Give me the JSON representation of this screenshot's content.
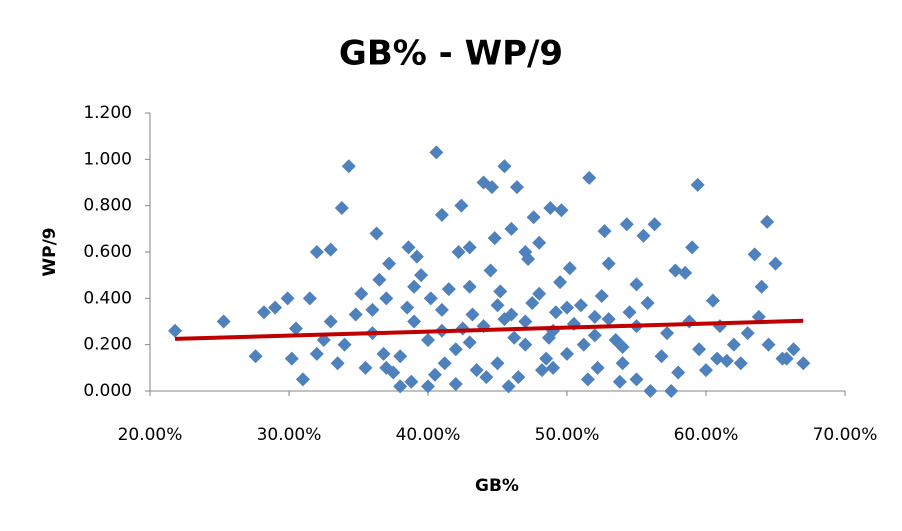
{
  "chart_data": {
    "type": "scatter",
    "title": "GB% - WP/9",
    "x_label": "GB%",
    "y_label": "WP/9",
    "color": "#4f81bd",
    "x": [
      21.8,
      25.3,
      27.6,
      28.2,
      29,
      29.9,
      30.2,
      31,
      32,
      33,
      33.8,
      34.3,
      40.6,
      45.5,
      44,
      44.6,
      46.4,
      51.6,
      59.4,
      64.4,
      65,
      63.5,
      67,
      66.3,
      65.8,
      64,
      61.5,
      60,
      57.8,
      58.5,
      59,
      56.3,
      55.5,
      54.3,
      52.7,
      49.6,
      48.8,
      47.6,
      42.4,
      41,
      38.6,
      36.3,
      57.5,
      56,
      55,
      53.8,
      60.5,
      62,
      63,
      64.5,
      36,
      37,
      38,
      39,
      40,
      41,
      42,
      43,
      44,
      45,
      46,
      47,
      48,
      49,
      50,
      51,
      52,
      53,
      54,
      55,
      35.5,
      36.5,
      37.5,
      38.5,
      39.5,
      40.5,
      41.5,
      42.5,
      43.5,
      44.5,
      45.5,
      46.5,
      47.5,
      48.5,
      49.5,
      50.5,
      51.5,
      52.5,
      53.5,
      54.5,
      34,
      34.8,
      35.2,
      36.8,
      37.2,
      38.8,
      39.2,
      40.2,
      41.2,
      42.2,
      43.2,
      44.2,
      45.2,
      46.2,
      47.2,
      48.2,
      49.2,
      50.2,
      51.2,
      52.2,
      33,
      33.5,
      32.5,
      31.5,
      30.5,
      32,
      55.8,
      56.8,
      57.2,
      58,
      58.8,
      59.5,
      60.8,
      61,
      62.5,
      63.8,
      65.5,
      53,
      54,
      55,
      43,
      44.8,
      46,
      47,
      48,
      45.8,
      42,
      40,
      38,
      37,
      36,
      39,
      41,
      43,
      45,
      47,
      49,
      50,
      52,
      48.7
    ],
    "values": [
      0.26,
      0.3,
      0.15,
      0.34,
      0.36,
      0.4,
      0.14,
      0.05,
      0.6,
      0.61,
      0.79,
      0.97,
      1.03,
      0.97,
      0.9,
      0.88,
      0.88,
      0.92,
      0.89,
      0.73,
      0.55,
      0.59,
      0.12,
      0.18,
      0.14,
      0.45,
      0.13,
      0.09,
      0.52,
      0.51,
      0.62,
      0.72,
      0.67,
      0.72,
      0.69,
      0.78,
      0.79,
      0.75,
      0.8,
      0.76,
      0.62,
      0.68,
      0.0,
      0.0,
      0.05,
      0.04,
      0.39,
      0.2,
      0.25,
      0.2,
      0.25,
      0.4,
      0.15,
      0.3,
      0.22,
      0.35,
      0.18,
      0.45,
      0.28,
      0.12,
      0.33,
      0.2,
      0.42,
      0.26,
      0.16,
      0.37,
      0.24,
      0.31,
      0.19,
      0.28,
      0.1,
      0.48,
      0.08,
      0.36,
      0.5,
      0.07,
      0.44,
      0.27,
      0.09,
      0.52,
      0.31,
      0.06,
      0.38,
      0.14,
      0.47,
      0.29,
      0.05,
      0.41,
      0.22,
      0.34,
      0.2,
      0.33,
      0.42,
      0.16,
      0.55,
      0.04,
      0.58,
      0.4,
      0.12,
      0.6,
      0.33,
      0.06,
      0.43,
      0.23,
      0.57,
      0.09,
      0.34,
      0.53,
      0.2,
      0.1,
      0.3,
      0.12,
      0.22,
      0.4,
      0.27,
      0.16,
      0.38,
      0.15,
      0.25,
      0.08,
      0.3,
      0.18,
      0.14,
      0.28,
      0.12,
      0.32,
      0.14,
      0.55,
      0.12,
      0.46,
      0.62,
      0.66,
      0.7,
      0.6,
      0.64,
      0.02,
      0.03,
      0.02,
      0.02,
      0.1,
      0.35,
      0.45,
      0.26,
      0.21,
      0.37,
      0.3,
      0.1,
      0.36,
      0.32,
      0.23
    ],
    "trendline": {
      "color": "#c00000",
      "x": [
        21.8,
        67
      ],
      "values": [
        0.225,
        0.303
      ]
    },
    "xlim": [
      20,
      70
    ],
    "xticks": [
      {
        "value": 20,
        "label": "20.00%"
      },
      {
        "value": 30,
        "label": "30.00%"
      },
      {
        "value": 40,
        "label": "40.00%"
      },
      {
        "value": 50,
        "label": "50.00%"
      },
      {
        "value": 60,
        "label": "60.00%"
      },
      {
        "value": 70,
        "label": "70.00%"
      }
    ],
    "ylim": [
      0,
      1.2
    ],
    "yticks": [
      {
        "value": 0,
        "label": "0.000"
      },
      {
        "value": 0.2,
        "label": "0.200"
      },
      {
        "value": 0.4,
        "label": "0.400"
      },
      {
        "value": 0.6,
        "label": "0.600"
      },
      {
        "value": 0.8,
        "label": "0.800"
      },
      {
        "value": 1,
        "label": "1.000"
      },
      {
        "value": 1.2,
        "label": "1.200"
      }
    ],
    "grid": false
  }
}
